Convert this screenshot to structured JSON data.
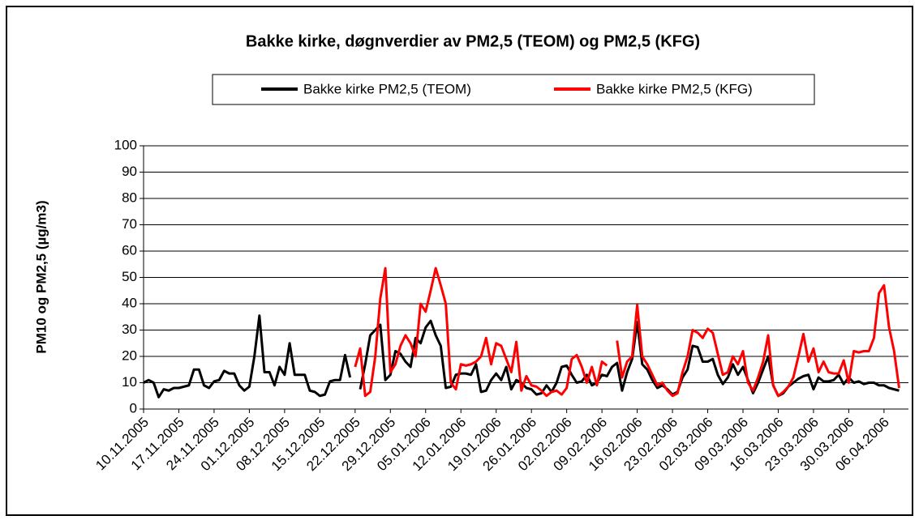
{
  "chart_data": {
    "type": "line",
    "title": "Bakke kirke, døgnverdier av PM2,5 (TEOM) og PM2,5 (KFG)",
    "y_label": "PM10 og PM2,5 (µg/m3)",
    "ylim": [
      0,
      100
    ],
    "yticks": [
      0,
      10,
      20,
      30,
      40,
      50,
      60,
      70,
      80,
      90,
      100
    ],
    "grid": true,
    "legend": "top",
    "categories": [
      "10.11.2005",
      null,
      null,
      null,
      null,
      null,
      null,
      "17.11.2005",
      null,
      null,
      null,
      null,
      null,
      null,
      "24.11.2005",
      null,
      null,
      null,
      null,
      null,
      null,
      "01.12.2005",
      null,
      null,
      null,
      null,
      null,
      null,
      "08.12.2005",
      null,
      null,
      null,
      null,
      null,
      null,
      "15.12.2005",
      null,
      null,
      null,
      null,
      null,
      null,
      "22.12.2005",
      null,
      null,
      null,
      null,
      null,
      null,
      "29.12.2005",
      null,
      null,
      null,
      null,
      null,
      null,
      "05.01.2006",
      null,
      null,
      null,
      null,
      null,
      null,
      "12.01.2006",
      null,
      null,
      null,
      null,
      null,
      null,
      "19.01.2006",
      null,
      null,
      null,
      null,
      null,
      null,
      "26.01.2006",
      null,
      null,
      null,
      null,
      null,
      null,
      "02.02.2006",
      null,
      null,
      null,
      null,
      null,
      null,
      "09.02.2006",
      null,
      null,
      null,
      null,
      null,
      null,
      "16.02.2006",
      null,
      null,
      null,
      null,
      null,
      null,
      "23.02.2006",
      null,
      null,
      null,
      null,
      null,
      null,
      "02.03.2006",
      null,
      null,
      null,
      null,
      null,
      null,
      "09.03.2006",
      null,
      null,
      null,
      null,
      null,
      null,
      "16.03.2006",
      null,
      null,
      null,
      null,
      null,
      null,
      "23.03.2006",
      null,
      null,
      null,
      null,
      null,
      null,
      "30.03.2006",
      null,
      null,
      null,
      null,
      null,
      null,
      "06.04.2006",
      null,
      null,
      null
    ],
    "series": [
      {
        "name": "Bakke kirke PM2,5 (TEOM)",
        "color": "#000000",
        "values": [
          10,
          11,
          10,
          4.5,
          7.5,
          7,
          8,
          8,
          8.5,
          9,
          15,
          15,
          9,
          8,
          10.5,
          11,
          14.5,
          13.5,
          13.5,
          9,
          7,
          8.5,
          20,
          35.5,
          14,
          14,
          9,
          16,
          13,
          25,
          13,
          13,
          13,
          7,
          6.5,
          5,
          5.5,
          10.5,
          11,
          11,
          20.5,
          12,
          null,
          7.5,
          17,
          28,
          30,
          32,
          11,
          13,
          22,
          21,
          18,
          16,
          27,
          25,
          31,
          33.5,
          28,
          24,
          8,
          8.5,
          13,
          13.5,
          13.5,
          13,
          17,
          6.5,
          7,
          11,
          13.5,
          11,
          16,
          7.5,
          11,
          10,
          8,
          7.5,
          5.5,
          6,
          9,
          6.5,
          10,
          16,
          16.5,
          13,
          10,
          10.5,
          13,
          9,
          10,
          13,
          12.5,
          16,
          17.5,
          7,
          14,
          19,
          33,
          17,
          15,
          11,
          8,
          9,
          7.5,
          5.5,
          6.5,
          12,
          15,
          24,
          23.5,
          18,
          18,
          19,
          13,
          9.5,
          12,
          17,
          13,
          16,
          11,
          6,
          10,
          15,
          20,
          9,
          5,
          6,
          8.5,
          10,
          11.5,
          12.5,
          13,
          7.5,
          12,
          10.5,
          10.5,
          11,
          13,
          9.5,
          12,
          10,
          10.5,
          9.5,
          10,
          10,
          9,
          9,
          8,
          7.5,
          7
        ]
      },
      {
        "name": "Bakke kirke PM2,5 (KFG)",
        "color": "#ff0000",
        "values": [
          null,
          null,
          null,
          null,
          null,
          null,
          null,
          null,
          null,
          null,
          null,
          null,
          null,
          null,
          null,
          null,
          null,
          null,
          null,
          null,
          null,
          null,
          null,
          null,
          null,
          null,
          null,
          null,
          null,
          null,
          null,
          null,
          null,
          null,
          null,
          null,
          null,
          null,
          null,
          null,
          null,
          null,
          16,
          23,
          5,
          6.5,
          20,
          42,
          53.5,
          14,
          17,
          24,
          28,
          25,
          20,
          40,
          37,
          45,
          53.5,
          47,
          40,
          10,
          7.5,
          17,
          16.5,
          17,
          18,
          20,
          27,
          17,
          25,
          24,
          19,
          14,
          25.5,
          7,
          12.5,
          9,
          8.5,
          7,
          5,
          6.5,
          7,
          5.5,
          8,
          19,
          20.5,
          16,
          10,
          16,
          9,
          18,
          16.5,
          null,
          26,
          12,
          18,
          20,
          39.5,
          20,
          17,
          13,
          9,
          10,
          7,
          5,
          6,
          14,
          20,
          30,
          29,
          27,
          30.5,
          29,
          21,
          13,
          14,
          20,
          17,
          22,
          10,
          7,
          12,
          18,
          28,
          9,
          5,
          6.5,
          8.5,
          12,
          20,
          28.5,
          18,
          23,
          14,
          18,
          14,
          13.5,
          13.5,
          18.5,
          10,
          22,
          21.5,
          22,
          22,
          27,
          44,
          47,
          31,
          22,
          8
        ]
      }
    ]
  }
}
